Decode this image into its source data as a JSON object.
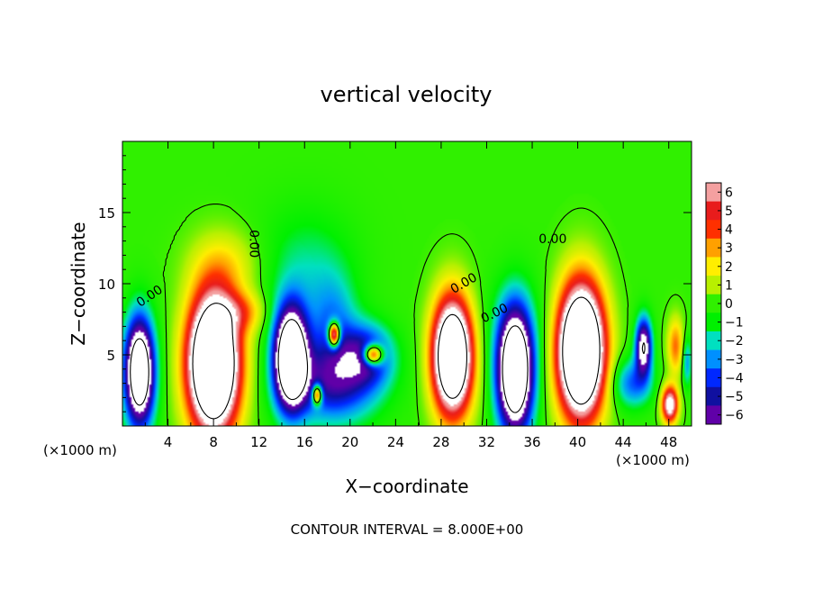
{
  "chart_data": {
    "type": "heatmap",
    "title": "vertical velocity",
    "xlabel": "X−coordinate",
    "ylabel": "Z−coordinate",
    "x_unit_left": "(×1000 m)",
    "x_unit_right": "(×1000 m)",
    "xlim": [
      0,
      50
    ],
    "ylim": [
      0,
      20
    ],
    "xticks": [
      4,
      8,
      12,
      16,
      20,
      24,
      28,
      32,
      36,
      40,
      44,
      48
    ],
    "xtick_labels": [
      "4",
      "8",
      "12",
      "16",
      "20",
      "24",
      "28",
      "32",
      "36",
      "40",
      "44",
      "48"
    ],
    "yticks": [
      5,
      10,
      15
    ],
    "ytick_labels": [
      "5",
      "10",
      "15"
    ],
    "colorbar": {
      "min": -6,
      "max": 6,
      "labels": [
        "6",
        "5",
        "4",
        "3",
        "2",
        "1",
        "0",
        "−1",
        "−2",
        "−3",
        "−4",
        "−5",
        "−6"
      ],
      "colors": [
        "#f4a0a0",
        "#e81c1c",
        "#ff3000",
        "#ffa000",
        "#ffee00",
        "#b8f000",
        "#30f000",
        "#00f000",
        "#00e0c0",
        "#0090ff",
        "#0028ff",
        "#1010a0",
        "#6000a8"
      ]
    },
    "background_value": 0,
    "cells": [
      {
        "x": 9.3,
        "z": 11.3,
        "value": 1.7,
        "sx": 2.3,
        "sz": 1.8
      },
      {
        "x": 10.5,
        "z": 8.0,
        "value": 2.6,
        "sx": 1.4,
        "sz": 1.0
      },
      {
        "x": 16.0,
        "z": 11.0,
        "value": -1.7,
        "sx": 3.0,
        "sz": 3.0
      },
      {
        "x": 18.5,
        "z": 7.0,
        "value": -2.6,
        "sx": 1.5,
        "sz": 2.5
      },
      {
        "x": 34.5,
        "z": 7.5,
        "value": -0.5,
        "sx": 3.0,
        "sz": 2.5
      },
      {
        "x": 1.5,
        "z": 3.8,
        "value": -12,
        "sx": 0.9,
        "sz": 2.6
      },
      {
        "x": 8.0,
        "z": 4.4,
        "value": 16,
        "sx": 1.55,
        "sz": 3.3
      },
      {
        "x": 14.8,
        "z": 4.8,
        "value": -13,
        "sx": 1.0,
        "sz": 2.4
      },
      {
        "x": 18.5,
        "z": 3.0,
        "value": -5,
        "sx": 2.8,
        "sz": 2.0
      },
      {
        "x": 21.5,
        "z": 5.0,
        "value": -4.5,
        "sx": 1.6,
        "sz": 1.5
      },
      {
        "x": 18.6,
        "z": 6.4,
        "value": 10,
        "sx": 0.35,
        "sz": 0.6
      },
      {
        "x": 17.1,
        "z": 2.2,
        "value": 8,
        "sx": 0.3,
        "sz": 0.5
      },
      {
        "x": 22.0,
        "z": 5.0,
        "value": 9,
        "sx": 0.6,
        "sz": 0.5
      },
      {
        "x": 29.0,
        "z": 4.9,
        "value": 14,
        "sx": 1.2,
        "sz": 2.8
      },
      {
        "x": 34.5,
        "z": 3.9,
        "value": -13,
        "sx": 1.1,
        "sz": 3.0
      },
      {
        "x": 40.3,
        "z": 5.3,
        "value": 16,
        "sx": 1.4,
        "sz": 3.2
      },
      {
        "x": 45.8,
        "z": 5.6,
        "value": -8,
        "sx": 0.5,
        "sz": 1.4
      },
      {
        "x": 44.8,
        "z": 3.0,
        "value": -3.5,
        "sx": 1.2,
        "sz": 1.2
      },
      {
        "x": 48.1,
        "z": 1.5,
        "value": 8,
        "sx": 0.5,
        "sz": 0.9
      },
      {
        "x": 48.6,
        "z": 5.6,
        "value": 3.5,
        "sx": 0.5,
        "sz": 1.4
      },
      {
        "x": 49.6,
        "z": 4.5,
        "value": -3,
        "sx": 0.3,
        "sz": 1.2
      }
    ],
    "contour_labels": [
      {
        "text": "0.00",
        "x": 2.4,
        "z": 9.1,
        "angle": 34
      },
      {
        "text": "0.00",
        "x": 11.5,
        "z": 12.8,
        "angle": -90
      },
      {
        "text": "0.00",
        "x": 30.0,
        "z": 10.0,
        "angle": 30
      },
      {
        "text": "0.00",
        "x": 37.8,
        "z": 13.1,
        "angle": 0
      },
      {
        "text": "0.00",
        "x": 32.7,
        "z": 7.9,
        "angle": 26
      }
    ],
    "footer": "CONTOUR INTERVAL = 8.000E+00"
  }
}
